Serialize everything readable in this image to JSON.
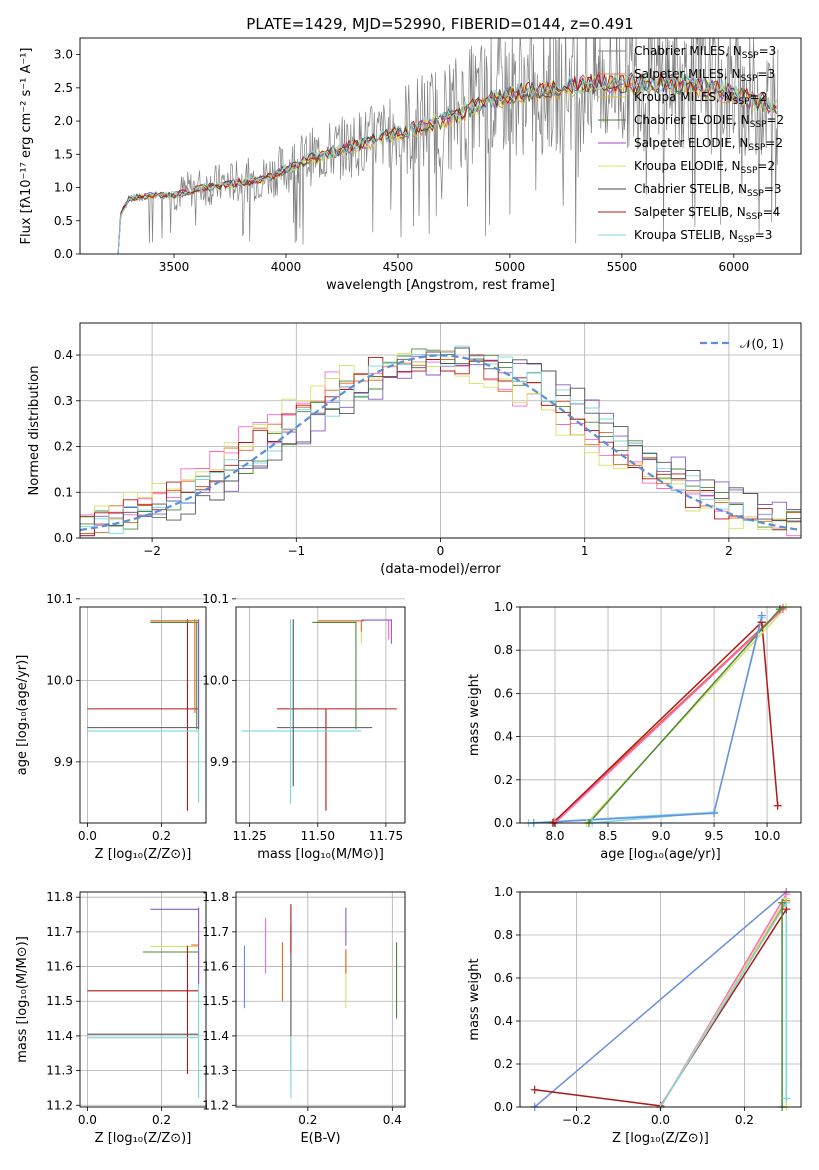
{
  "figure_title": "PLATE=1429, MJD=52990, FIBERID=0144, z=0.491",
  "colors": {
    "data": "#808080",
    "models": [
      "#808080",
      "#e8824a",
      "#d4b84a",
      "#4a7a3a",
      "#a844c8",
      "#d8e066",
      "#4a4a4a",
      "#b01818",
      "#7ad8e0"
    ],
    "residual": [
      "#ff66cc",
      "#e06820",
      "#4a8a3a",
      "#8a5ac8",
      "#d8e066",
      "#b01818",
      "#7ad8e0",
      "#555555",
      "#6a8fe0"
    ],
    "normal_curve": "#5b8fd9"
  },
  "chart_data": [
    {
      "id": "spectrum",
      "type": "line",
      "title": "PLATE=1429, MJD=52990, FIBERID=0144, z=0.491",
      "xlabel": "wavelength [Angstrom, rest frame]",
      "ylabel": "Flux [fλ10⁻¹⁷ erg cm⁻² s⁻¹ A⁻¹]",
      "xlim": [
        3080,
        6300
      ],
      "ylim": [
        0,
        3.25
      ],
      "xticks": [
        3500,
        4000,
        4500,
        5000,
        5500,
        6000
      ],
      "yticks": [
        0.0,
        0.5,
        1.0,
        1.5,
        2.0,
        2.5,
        3.0
      ],
      "legend_position": "top-right",
      "legend": [
        "Chabrier MILES, N_SSP=3",
        "Salpeter MILES, N_SSP=3",
        "Kroupa MILES, N_SSP=2",
        "Chabrier ELODIE, N_SSP=2",
        "Salpeter ELODIE, N_SSP=2",
        "Kroupa ELODIE, N_SSP=2",
        "Chabrier STELIB, N_SSP=3",
        "Salpeter STELIB, N_SSP=4",
        "Kroupa STELIB, N_SSP=3"
      ],
      "legend_base": [
        "Chabrier MILES, N",
        "Salpeter MILES, N",
        "Kroupa MILES, N",
        "Chabrier ELODIE, N",
        "Salpeter ELODIE, N",
        "Kroupa ELODIE, N",
        "Chabrier STELIB, N",
        "Salpeter STELIB, N",
        "Kroupa STELIB, N"
      ],
      "legend_sub": "SSP",
      "legend_n": [
        "=3",
        "=3",
        "=2",
        "=2",
        "=2",
        "=2",
        "=3",
        "=4",
        "=3"
      ],
      "continuum": {
        "x": [
          3250,
          3260,
          3300,
          3400,
          3500,
          3600,
          3700,
          3800,
          3900,
          4000,
          4100,
          4200,
          4300,
          4400,
          4500,
          4600,
          4700,
          4800,
          4900,
          5000,
          5100,
          5200,
          5300,
          5400,
          5500,
          5600,
          5700,
          5800,
          5900,
          6000,
          6100,
          6200
        ],
        "y": [
          0.0,
          0.6,
          0.85,
          0.9,
          0.9,
          1.0,
          1.05,
          1.1,
          1.15,
          1.3,
          1.45,
          1.55,
          1.65,
          1.75,
          1.85,
          1.95,
          2.05,
          2.2,
          2.35,
          2.45,
          2.5,
          2.55,
          2.6,
          2.62,
          2.63,
          2.6,
          2.62,
          2.6,
          2.55,
          2.45,
          2.35,
          2.25
        ]
      }
    },
    {
      "id": "residuals",
      "type": "line",
      "xlabel": "(data-model)/error",
      "ylabel": "Normed distribution",
      "xlim": [
        -2.5,
        2.5
      ],
      "ylim": [
        0,
        0.47
      ],
      "xticks": [
        -2,
        -1,
        0,
        1,
        2
      ],
      "yticks": [
        0.0,
        0.1,
        0.2,
        0.3,
        0.4
      ],
      "grid": true,
      "legend_position": "top-right",
      "legend": [
        "𝒩(0, 1)"
      ],
      "series": [
        {
          "name": "𝒩(0, 1)",
          "mean": 0,
          "sigma": 1
        }
      ],
      "bin_width": 0.1
    },
    {
      "id": "age-vs-Z",
      "type": "line",
      "xlabel": "Z [log₁₀(Z/Z⊙)]",
      "ylabel": "age  [log₁₀(age/yr)]",
      "xlim": [
        -0.02,
        0.32
      ],
      "ylim": [
        9.825,
        10.09
      ],
      "xticks": [
        0.0,
        0.2
      ],
      "yticks": [
        9.9,
        10.0,
        10.1
      ],
      "grid": true,
      "segments": [
        {
          "c": "#b01818",
          "x": [
            0.0,
            0.3
          ],
          "y": [
            9.965,
            9.965
          ]
        },
        {
          "c": "#b01818",
          "x": [
            0.27,
            0.27
          ],
          "y": [
            9.84,
            10.075
          ]
        },
        {
          "c": "#555555",
          "x": [
            0.0,
            0.3
          ],
          "y": [
            9.942,
            9.942
          ]
        },
        {
          "c": "#7ad8e0",
          "x": [
            0.0,
            0.3
          ],
          "y": [
            9.938,
            9.938
          ]
        },
        {
          "c": "#7ad8e0",
          "x": [
            0.3,
            0.3
          ],
          "y": [
            9.85,
            10.075
          ]
        },
        {
          "c": "#e06820",
          "x": [
            0.17,
            0.3
          ],
          "y": [
            10.073,
            10.073
          ]
        },
        {
          "c": "#4a8a3a",
          "x": [
            0.17,
            0.3
          ],
          "y": [
            10.071,
            10.071
          ]
        },
        {
          "c": "#d8e066",
          "x": [
            0.28,
            0.3
          ],
          "y": [
            10.072,
            10.072
          ]
        },
        {
          "c": "#8a5ac8",
          "x": [
            0.3,
            0.3
          ],
          "y": [
            9.94,
            10.075
          ]
        },
        {
          "c": "#e06820",
          "x": [
            0.29,
            0.29
          ],
          "y": [
            9.96,
            10.075
          ]
        },
        {
          "c": "#4a8a3a",
          "x": [
            0.295,
            0.295
          ],
          "y": [
            9.94,
            10.072
          ]
        }
      ]
    },
    {
      "id": "age-vs-mass",
      "type": "line",
      "xlabel": "mass [log₁₀(M/M⊙)]",
      "ylabel": "",
      "xlim": [
        11.2,
        11.82
      ],
      "ylim": [
        9.825,
        10.09
      ],
      "xticks": [
        11.25,
        11.5,
        11.75
      ],
      "yticks": [
        9.9,
        10.0,
        10.1
      ],
      "grid": true,
      "segments": [
        {
          "c": "#b01818",
          "x": [
            11.35,
            11.79
          ],
          "y": [
            9.965,
            9.965
          ]
        },
        {
          "c": "#b01818",
          "x": [
            11.53,
            11.53
          ],
          "y": [
            9.84,
            9.965
          ]
        },
        {
          "c": "#555555",
          "x": [
            11.35,
            11.7
          ],
          "y": [
            9.942,
            9.942
          ]
        },
        {
          "c": "#7ad8e0",
          "x": [
            11.22,
            11.66
          ],
          "y": [
            9.938,
            9.938
          ]
        },
        {
          "c": "#7ad8e0",
          "x": [
            11.4,
            11.4
          ],
          "y": [
            9.848,
            10.075
          ]
        },
        {
          "c": "#555555",
          "x": [
            11.41,
            11.41
          ],
          "y": [
            9.87,
            10.075
          ]
        },
        {
          "c": "#4a8a3a",
          "x": [
            11.64,
            11.64
          ],
          "y": [
            9.94,
            10.072
          ]
        },
        {
          "c": "#e06820",
          "x": [
            11.5,
            11.67
          ],
          "y": [
            10.073,
            10.073
          ]
        },
        {
          "c": "#4a8a3a",
          "x": [
            11.48,
            11.64
          ],
          "y": [
            10.071,
            10.071
          ]
        },
        {
          "c": "#8a5ac8",
          "x": [
            11.66,
            11.77
          ],
          "y": [
            10.074,
            10.074
          ]
        },
        {
          "c": "#8a5ac8",
          "x": [
            11.77,
            11.77
          ],
          "y": [
            10.045,
            10.075
          ]
        },
        {
          "c": "#ff66cc",
          "x": [
            11.76,
            11.76
          ],
          "y": [
            10.05,
            10.075
          ]
        },
        {
          "c": "#d8e066",
          "x": [
            11.66,
            11.66
          ],
          "y": [
            10.045,
            10.072
          ]
        },
        {
          "c": "#e06820",
          "x": [
            11.66,
            11.66
          ],
          "y": [
            10.06,
            10.073
          ]
        }
      ]
    },
    {
      "id": "massweight-vs-age",
      "type": "line",
      "xlabel": "age  [log₁₀(age/yr)]",
      "ylabel": "mass weight",
      "xlim": [
        7.67,
        10.32
      ],
      "ylim": [
        0.0,
        1.0
      ],
      "xticks": [
        8.0,
        8.5,
        9.0,
        9.5,
        10.0
      ],
      "yticks": [
        0.0,
        0.2,
        0.4,
        0.6,
        0.8,
        1.0
      ],
      "grid": true,
      "series": [
        {
          "c": "#e06820",
          "x": [
            7.99,
            10.15
          ],
          "y": [
            0.005,
            0.995
          ]
        },
        {
          "c": "#ff66cc",
          "x": [
            8.0,
            10.15
          ],
          "y": [
            0.0,
            0.99
          ]
        },
        {
          "c": "#b01818",
          "x": [
            7.98,
            9.95
          ],
          "y": [
            0.0,
            0.93
          ]
        },
        {
          "c": "#b01818",
          "x": [
            9.95,
            10.1
          ],
          "y": [
            0.93,
            0.08
          ]
        },
        {
          "c": "#d8e066",
          "x": [
            8.3,
            10.18
          ],
          "y": [
            0.0,
            1.0
          ]
        },
        {
          "c": "#4a8a3a",
          "x": [
            8.32,
            10.12
          ],
          "y": [
            0.0,
            0.99
          ]
        },
        {
          "c": "#7ad8e0",
          "x": [
            7.75,
            9.5,
            9.95,
            9.5,
            8.35
          ],
          "y": [
            0.0,
            0.05,
            0.95,
            0.05,
            0.0
          ]
        },
        {
          "c": "#6a8fe0",
          "x": [
            7.8,
            9.5,
            9.95
          ],
          "y": [
            0.0,
            0.045,
            0.96
          ]
        }
      ]
    },
    {
      "id": "mass-vs-Z",
      "type": "line",
      "xlabel": "Z [log₁₀(Z/Z⊙)]",
      "ylabel": "mass [log₁₀(M/M⊙)]",
      "xlim": [
        -0.02,
        0.32
      ],
      "ylim": [
        11.195,
        11.815
      ],
      "xticks": [
        0.0,
        0.2
      ],
      "yticks": [
        11.2,
        11.3,
        11.4,
        11.5,
        11.6,
        11.7,
        11.8
      ],
      "grid": true,
      "segments": [
        {
          "c": "#8a5ac8",
          "x": [
            0.17,
            0.3
          ],
          "y": [
            11.765,
            11.765
          ]
        },
        {
          "c": "#d8e066",
          "x": [
            0.17,
            0.3
          ],
          "y": [
            11.658,
            11.658
          ]
        },
        {
          "c": "#4a8a3a",
          "x": [
            0.15,
            0.3
          ],
          "y": [
            11.642,
            11.642
          ]
        },
        {
          "c": "#e06820",
          "x": [
            0.28,
            0.3
          ],
          "y": [
            11.662,
            11.662
          ]
        },
        {
          "c": "#b01818",
          "x": [
            0.0,
            0.3
          ],
          "y": [
            11.53,
            11.53
          ]
        },
        {
          "c": "#b01818",
          "x": [
            0.27,
            0.27
          ],
          "y": [
            11.29,
            11.66
          ]
        },
        {
          "c": "#555555",
          "x": [
            0.0,
            0.3
          ],
          "y": [
            11.405,
            11.405
          ]
        },
        {
          "c": "#7ad8e0",
          "x": [
            0.0,
            0.3
          ],
          "y": [
            11.395,
            11.395
          ]
        },
        {
          "c": "#7ad8e0",
          "x": [
            0.3,
            0.3
          ],
          "y": [
            11.22,
            11.77
          ]
        },
        {
          "c": "#8a5ac8",
          "x": [
            0.3,
            0.3
          ],
          "y": [
            11.55,
            11.77
          ]
        }
      ]
    },
    {
      "id": "mass-vs-EBV",
      "type": "scatter",
      "xlabel": "E(B-V)",
      "ylabel": "",
      "xlim": [
        0.03,
        0.43
      ],
      "ylim": [
        11.195,
        11.815
      ],
      "xticks": [
        0.2,
        0.4
      ],
      "yticks": [
        11.2,
        11.3,
        11.4,
        11.5,
        11.6,
        11.7,
        11.8
      ],
      "grid": true,
      "errorbars": [
        {
          "c": "#6a8fe0",
          "x": 0.05,
          "y": [
            11.48,
            11.66
          ]
        },
        {
          "c": "#ff66cc",
          "x": 0.1,
          "y": [
            11.58,
            11.74
          ]
        },
        {
          "c": "#e06820",
          "x": 0.14,
          "y": [
            11.5,
            11.67
          ]
        },
        {
          "c": "#555555",
          "x": 0.16,
          "y": [
            11.3,
            11.72
          ]
        },
        {
          "c": "#b01818",
          "x": 0.16,
          "y": [
            11.64,
            11.78
          ]
        },
        {
          "c": "#7ad8e0",
          "x": 0.16,
          "y": [
            11.22,
            11.4
          ]
        },
        {
          "c": "#8a5ac8",
          "x": 0.29,
          "y": [
            11.66,
            11.77
          ]
        },
        {
          "c": "#d8e066",
          "x": 0.29,
          "y": [
            11.48,
            11.65
          ]
        },
        {
          "c": "#e06820",
          "x": 0.29,
          "y": [
            11.58,
            11.65
          ]
        },
        {
          "c": "#4a8a3a",
          "x": 0.41,
          "y": [
            11.45,
            11.67
          ]
        }
      ]
    },
    {
      "id": "massweight-vs-Z",
      "type": "line",
      "xlabel": "Z [log₁₀(Z/Z⊙)]",
      "ylabel": "mass weight",
      "xlim": [
        -0.335,
        0.335
      ],
      "ylim": [
        0.0,
        1.0
      ],
      "xticks": [
        -0.2,
        0.0,
        0.2
      ],
      "yticks": [
        0.0,
        0.2,
        0.4,
        0.6,
        0.8,
        1.0
      ],
      "grid": true,
      "series": [
        {
          "c": "#6a8fe0",
          "x": [
            -0.3,
            0.3
          ],
          "y": [
            0.0,
            1.0
          ]
        },
        {
          "c": "#b01818",
          "x": [
            -0.3,
            0.0,
            0.3
          ],
          "y": [
            0.08,
            0.005,
            0.92
          ]
        },
        {
          "c": "#ff66cc",
          "x": [
            0.0,
            0.3
          ],
          "y": [
            0.0,
            0.99
          ]
        },
        {
          "c": "#e06820",
          "x": [
            0.0,
            0.3
          ],
          "y": [
            0.0,
            0.96
          ]
        },
        {
          "c": "#d8e066",
          "x": [
            0.0,
            0.3,
            0.3
          ],
          "y": [
            0.0,
            0.97,
            0.0
          ]
        },
        {
          "c": "#7ad8e0",
          "x": [
            0.0,
            0.3,
            0.3
          ],
          "y": [
            0.0,
            0.95,
            0.04
          ]
        },
        {
          "c": "#4a8a3a",
          "x": [
            0.29,
            0.29
          ],
          "y": [
            0.0,
            0.95
          ]
        }
      ]
    }
  ]
}
